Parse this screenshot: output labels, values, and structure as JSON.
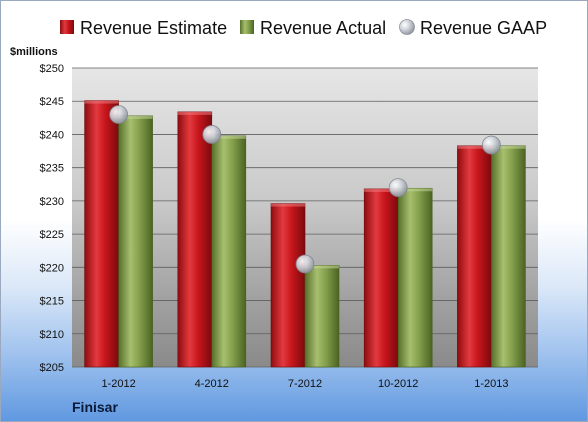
{
  "chart_data": {
    "type": "bar",
    "company": "Finisar",
    "ylabel": "$millions",
    "categories": [
      "1-2012",
      "4-2012",
      "7-2012",
      "10-2012",
      "1-2013"
    ],
    "ylim": [
      205,
      250
    ],
    "yticks": [
      205,
      210,
      215,
      220,
      225,
      230,
      235,
      240,
      245,
      250
    ],
    "ytick_labels": [
      "$205",
      "$210",
      "$215",
      "$220",
      "$225",
      "$230",
      "$235",
      "$240",
      "$245",
      "$250"
    ],
    "grid": true,
    "legend_position": "top",
    "series": [
      {
        "name": "Revenue Estimate",
        "type": "bar",
        "color": "#c8161d",
        "values": [
          245.1,
          243.4,
          229.6,
          231.8,
          238.3
        ]
      },
      {
        "name": "Revenue Actual",
        "type": "bar",
        "color": "#7f9a48",
        "values": [
          242.8,
          239.8,
          220.3,
          231.9,
          238.3
        ]
      },
      {
        "name": "Revenue GAAP",
        "type": "marker",
        "color": "#b8bcc6",
        "values": [
          243.0,
          240.0,
          220.5,
          232.0,
          238.4
        ]
      }
    ]
  }
}
